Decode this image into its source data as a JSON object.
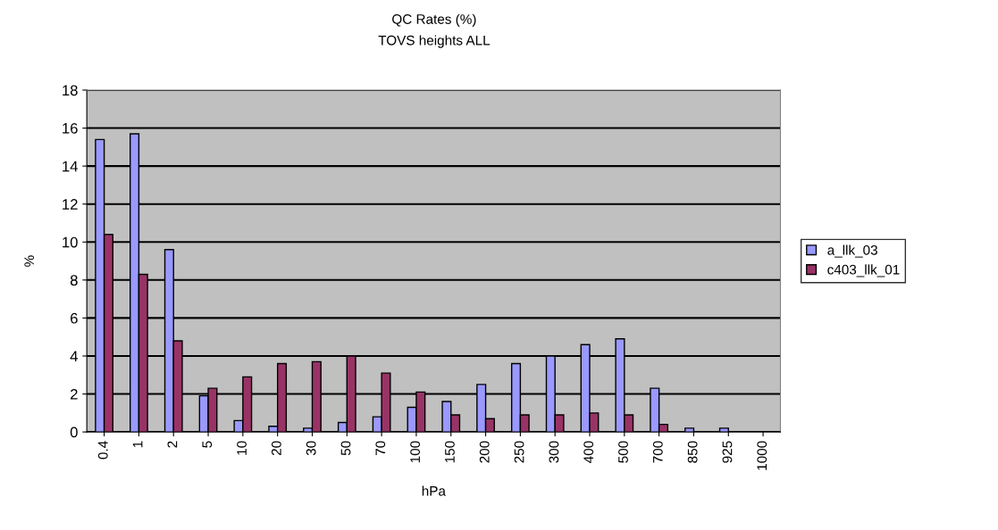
{
  "chart_data": {
    "type": "bar",
    "title": "QC Rates (%)",
    "subtitle": "TOVS heights ALL",
    "xlabel": "hPa",
    "ylabel": "%",
    "categories": [
      "0.4",
      "1",
      "2",
      "5",
      "10",
      "20",
      "30",
      "50",
      "70",
      "100",
      "150",
      "200",
      "250",
      "300",
      "400",
      "500",
      "700",
      "850",
      "925",
      "1000"
    ],
    "series": [
      {
        "name": "a_llk_03",
        "color": "#9999ff",
        "values": [
          15.4,
          15.7,
          9.6,
          1.9,
          0.6,
          0.3,
          0.2,
          0.5,
          0.8,
          1.3,
          1.6,
          2.5,
          3.6,
          4.0,
          4.6,
          4.9,
          2.3,
          0.2,
          0.2,
          null
        ]
      },
      {
        "name": "c403_llk_01",
        "color": "#993366",
        "values": [
          10.4,
          8.3,
          4.8,
          2.3,
          2.9,
          3.6,
          3.7,
          4.0,
          3.1,
          2.1,
          0.9,
          0.7,
          0.9,
          0.9,
          1.0,
          0.9,
          0.4,
          null,
          null,
          null
        ]
      }
    ],
    "ylim": [
      0,
      18
    ],
    "yticks": [
      0,
      2,
      4,
      6,
      8,
      10,
      12,
      14,
      16,
      18
    ],
    "grid": "y",
    "legend": "right"
  }
}
